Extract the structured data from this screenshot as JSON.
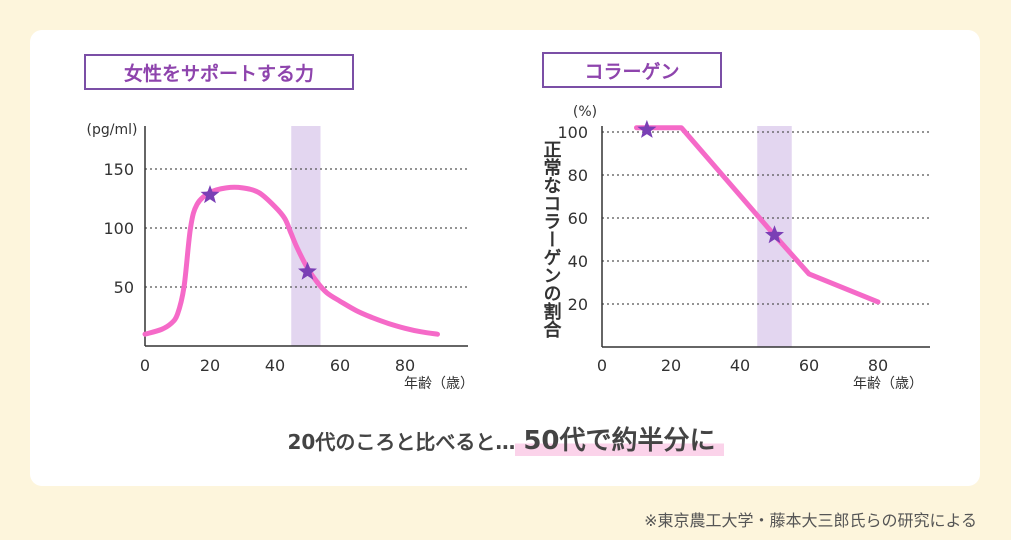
{
  "summary": {
    "prefix": "20代のころと比べると…",
    "highlight": "50代で約半分に"
  },
  "source_note": "※東京農工大学・藤本大三郎氏らの研究による",
  "colors": {
    "line": "#f56ac8",
    "star": "#7a3fb5",
    "band": "#e3d6f0",
    "title_border": "#7b4fa6"
  },
  "chart_data": [
    {
      "type": "line",
      "title": "女性をサポートする力",
      "ylabel": "(pg/ml)",
      "xlabel": "年齢（歳）",
      "xlim": [
        0,
        100
      ],
      "ylim": [
        0,
        180
      ],
      "xticks": [
        "0",
        "20",
        "40",
        "60",
        "80"
      ],
      "yticks": [
        "50",
        "100",
        "150"
      ],
      "grid": "horizontal-dotted",
      "highlight_band": [
        45,
        54
      ],
      "series": [
        {
          "x": [
            0,
            5,
            8,
            10,
            12,
            14,
            16,
            20,
            25,
            30,
            35,
            40,
            43,
            45,
            47,
            50,
            53,
            56,
            60,
            65,
            70,
            75,
            80,
            85,
            90
          ],
          "values": [
            10,
            14,
            19,
            27,
            50,
            100,
            120,
            130,
            134,
            134,
            130,
            118,
            108,
            95,
            82,
            66,
            54,
            45,
            38,
            30,
            24,
            19,
            15,
            12,
            10
          ]
        }
      ],
      "markers": [
        {
          "x": 20,
          "y": 128,
          "symbol": "star"
        },
        {
          "x": 50,
          "y": 63,
          "symbol": "star"
        }
      ]
    },
    {
      "type": "line",
      "title": "コラーゲン",
      "ylabel": "正常なコラーゲンの割合",
      "yunit": "(%)",
      "xlabel": "年齢（歳）",
      "xlim": [
        0,
        100
      ],
      "ylim": [
        0,
        103
      ],
      "xticks": [
        "0",
        "20",
        "40",
        "60",
        "80"
      ],
      "yticks": [
        "20",
        "40",
        "60",
        "80",
        "100"
      ],
      "grid": "horizontal-dotted",
      "highlight_band": [
        45,
        55
      ],
      "series": [
        {
          "x": [
            10,
            23,
            50,
            60,
            80
          ],
          "values": [
            102,
            102,
            52,
            34,
            21
          ]
        }
      ],
      "markers": [
        {
          "x": 13,
          "y": 101,
          "symbol": "star"
        },
        {
          "x": 50,
          "y": 52,
          "symbol": "star"
        }
      ]
    }
  ]
}
